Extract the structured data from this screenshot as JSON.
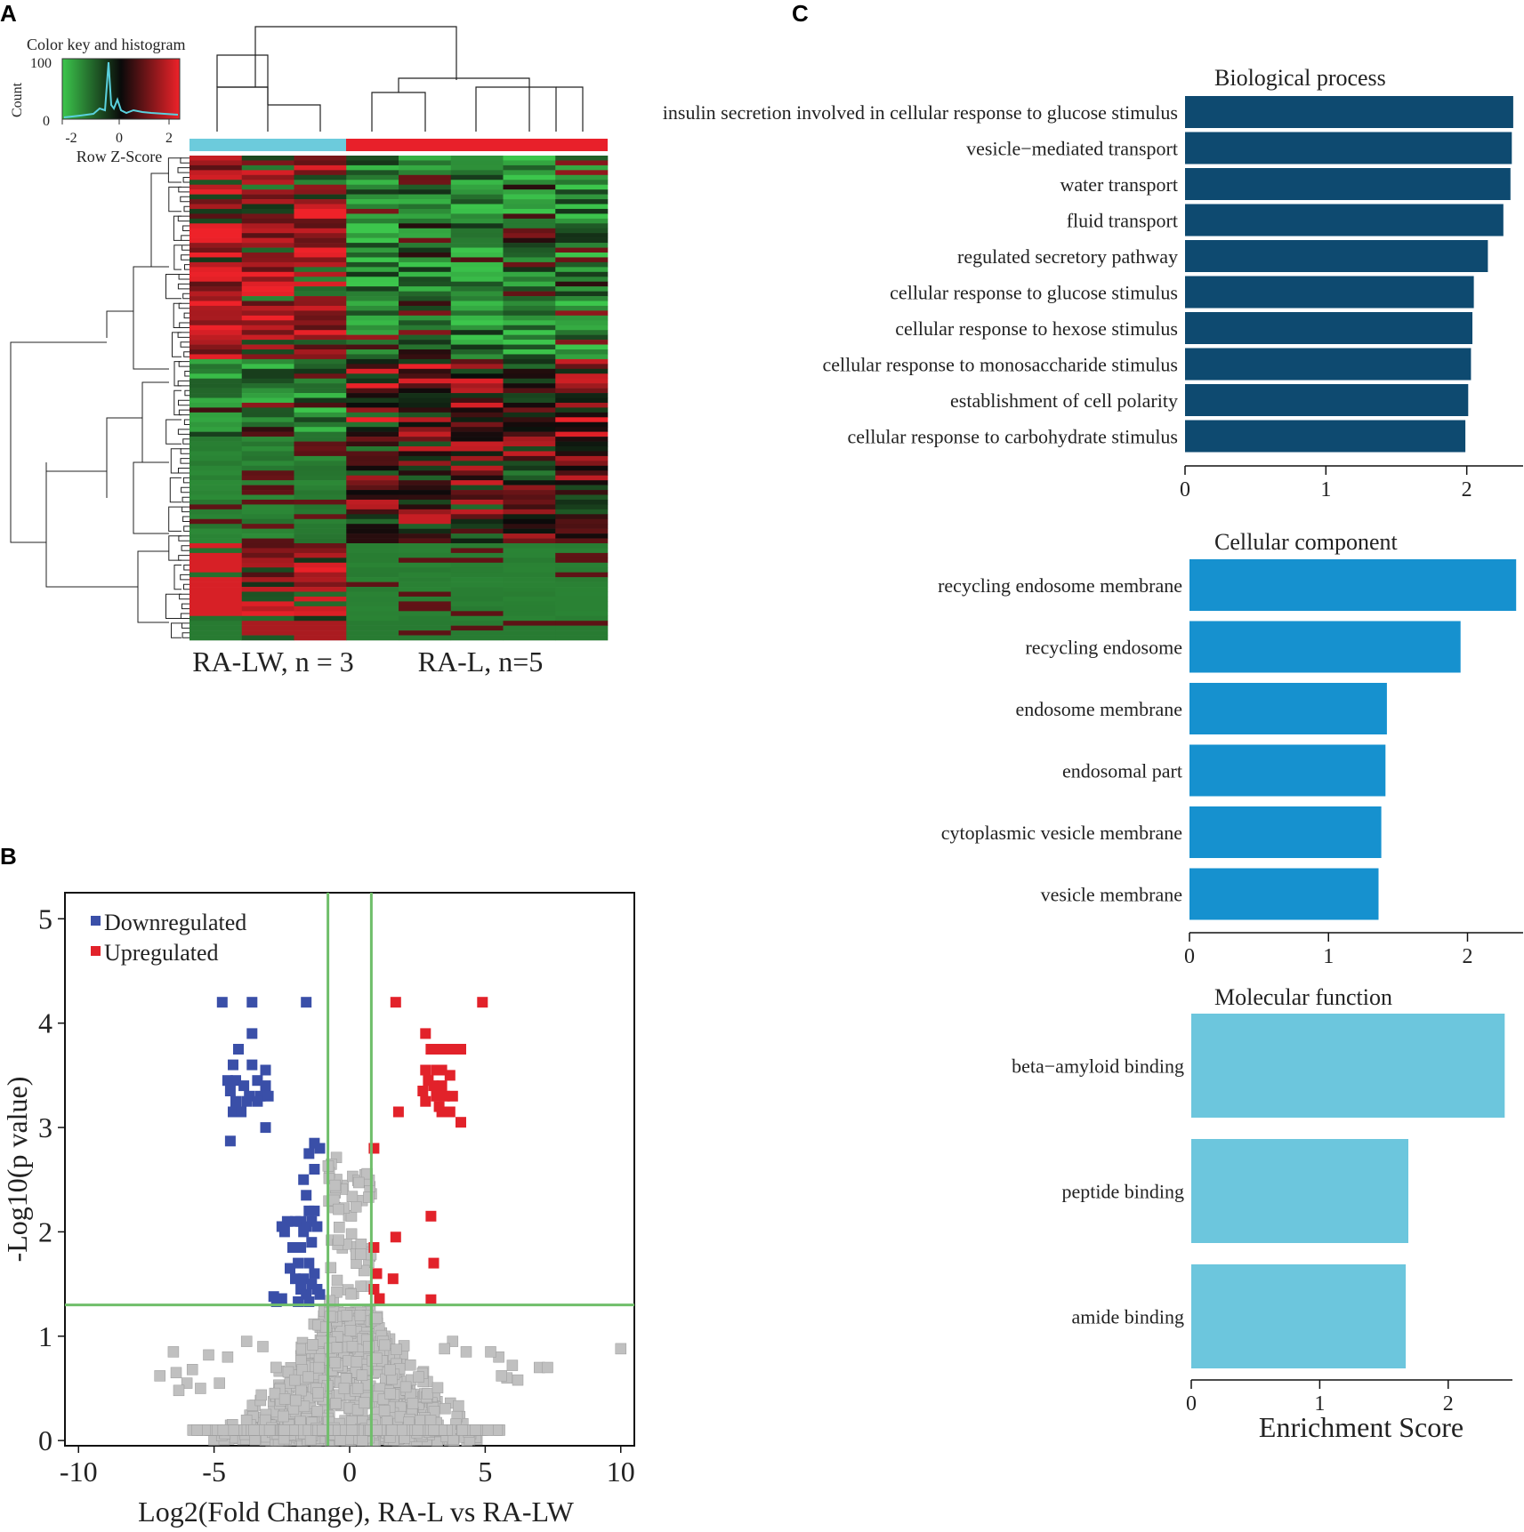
{
  "panels": {
    "a": "A",
    "b": "B",
    "c": "C"
  },
  "chart_data": [
    {
      "type": "heatmap",
      "panel": "A",
      "color_key": {
        "title": "Color key and histogram",
        "ylabel": "Count",
        "xlabel": "Row Z-Score",
        "yticks": [
          "100",
          "0"
        ],
        "xticks": [
          "-2",
          "0",
          "2"
        ],
        "colors": {
          "low": "#3cc64c",
          "mid": "#0a0a0a",
          "high": "#ee2229",
          "histogram": "#5ad0dd"
        }
      },
      "groups": [
        {
          "label": "RA-LW, n = 3",
          "columns": 3,
          "color": "#6ccbdc"
        },
        {
          "label": "RA-L, n=5",
          "columns": 5,
          "color": "#e8202a"
        }
      ],
      "n_rows": 100
    },
    {
      "type": "scatter",
      "panel": "B",
      "xlabel": "Log2(Fold Change), RA-L vs RA-LW",
      "ylabel": "-Log10(p value)",
      "xlim": [
        -10.5,
        10.5
      ],
      "ylim": [
        -0.05,
        5.25
      ],
      "xticks": [
        -10,
        -5,
        0,
        5,
        10
      ],
      "yticks": [
        0,
        1,
        2,
        3,
        4,
        5
      ],
      "xtick_labels": [
        "-10",
        "-5",
        "0",
        "5",
        "10"
      ],
      "ytick_labels": [
        "0",
        "1",
        "2",
        "3",
        "4",
        "5"
      ],
      "thresholds": {
        "x": [
          -0.8,
          0.8
        ],
        "y": 1.3
      },
      "legend": [
        {
          "label": "Downregulated",
          "color": "#3a4fa8"
        },
        {
          "label": "Upregulated",
          "color": "#e2222a"
        }
      ],
      "nonsignificant_color": "#c0c0c0",
      "series": [
        {
          "name": "Downregulated",
          "points": [
            [
              -4.7,
              4.2
            ],
            [
              -3.6,
              4.2
            ],
            [
              -1.6,
              4.2
            ],
            [
              -3.6,
              3.9
            ],
            [
              -4.1,
              3.75
            ],
            [
              -4.3,
              3.6
            ],
            [
              -3.6,
              3.6
            ],
            [
              -3.1,
              3.55
            ],
            [
              -4.5,
              3.45
            ],
            [
              -4.2,
              3.45
            ],
            [
              -3.9,
              3.4
            ],
            [
              -3.4,
              3.45
            ],
            [
              -3.1,
              3.4
            ],
            [
              -4.4,
              3.35
            ],
            [
              -3.7,
              3.3
            ],
            [
              -3.3,
              3.3
            ],
            [
              -3.0,
              3.3
            ],
            [
              -4.2,
              3.25
            ],
            [
              -3.8,
              3.25
            ],
            [
              -3.4,
              3.25
            ],
            [
              -4.3,
              3.15
            ],
            [
              -4.0,
              3.15
            ],
            [
              -3.1,
              3.0
            ],
            [
              -4.4,
              2.87
            ],
            [
              -1.3,
              2.85
            ],
            [
              -1.1,
              2.8
            ],
            [
              -1.5,
              2.75
            ],
            [
              -1.3,
              2.6
            ],
            [
              -1.7,
              2.5
            ],
            [
              -1.6,
              2.35
            ],
            [
              -1.5,
              2.2
            ],
            [
              -1.3,
              2.2
            ],
            [
              -1.4,
              2.1
            ],
            [
              -1.8,
              2.1
            ],
            [
              -2.0,
              2.1
            ],
            [
              -2.3,
              2.1
            ],
            [
              -2.5,
              2.05
            ],
            [
              -1.6,
              2.05
            ],
            [
              -1.2,
              2.05
            ],
            [
              -1.7,
              2.0
            ],
            [
              -2.4,
              2.0
            ],
            [
              -1.4,
              1.9
            ],
            [
              -1.8,
              1.85
            ],
            [
              -2.1,
              1.85
            ],
            [
              -1.5,
              1.7
            ],
            [
              -1.9,
              1.7
            ],
            [
              -2.2,
              1.65
            ],
            [
              -1.3,
              1.6
            ],
            [
              -1.7,
              1.55
            ],
            [
              -2.0,
              1.55
            ],
            [
              -1.4,
              1.5
            ],
            [
              -1.8,
              1.45
            ],
            [
              -1.2,
              1.45
            ],
            [
              -1.6,
              1.4
            ],
            [
              -1.1,
              1.4
            ],
            [
              -2.8,
              1.38
            ],
            [
              -2.5,
              1.36
            ],
            [
              -2.7,
              1.33
            ],
            [
              -1.9,
              1.33
            ],
            [
              -1.5,
              1.33
            ]
          ]
        },
        {
          "name": "Upregulated",
          "points": [
            [
              1.7,
              4.2
            ],
            [
              4.9,
              4.2
            ],
            [
              2.8,
              3.9
            ],
            [
              3.0,
              3.75
            ],
            [
              3.3,
              3.75
            ],
            [
              3.5,
              3.75
            ],
            [
              3.8,
              3.75
            ],
            [
              4.1,
              3.75
            ],
            [
              2.8,
              3.55
            ],
            [
              3.2,
              3.55
            ],
            [
              3.4,
              3.55
            ],
            [
              3.7,
              3.5
            ],
            [
              2.9,
              3.45
            ],
            [
              3.1,
              3.4
            ],
            [
              3.4,
              3.4
            ],
            [
              2.7,
              3.35
            ],
            [
              3.2,
              3.3
            ],
            [
              3.5,
              3.3
            ],
            [
              3.8,
              3.3
            ],
            [
              2.8,
              3.25
            ],
            [
              3.3,
              3.2
            ],
            [
              1.8,
              3.15
            ],
            [
              3.4,
              3.15
            ],
            [
              3.7,
              3.15
            ],
            [
              4.1,
              3.05
            ],
            [
              0.9,
              2.8
            ],
            [
              3.0,
              2.15
            ],
            [
              1.7,
              1.95
            ],
            [
              0.9,
              1.85
            ],
            [
              3.1,
              1.7
            ],
            [
              1.0,
              1.6
            ],
            [
              0.9,
              1.45
            ],
            [
              1.6,
              1.55
            ],
            [
              3.0,
              1.35
            ],
            [
              1.1,
              1.36
            ]
          ]
        },
        {
          "name": "Not significant",
          "points": [
            [
              10,
              0.88
            ],
            [
              -6.5,
              0.85
            ],
            [
              -6.4,
              0.65
            ],
            [
              -7.0,
              0.62
            ],
            [
              -5.8,
              0.68
            ],
            [
              -6.0,
              0.55
            ],
            [
              7.0,
              0.7
            ],
            [
              7.3,
              0.7
            ],
            [
              6.0,
              0.72
            ],
            [
              5.8,
              0.6
            ],
            [
              5.6,
              0.62
            ],
            [
              6.2,
              0.58
            ],
            [
              5.5,
              0.8
            ],
            [
              5.2,
              0.85
            ],
            [
              -5.2,
              0.82
            ],
            [
              -4.5,
              0.8
            ],
            [
              -4.8,
              0.55
            ],
            [
              -5.5,
              0.5
            ],
            [
              -6.3,
              0.48
            ],
            [
              4.3,
              0.85
            ],
            [
              3.8,
              0.95
            ],
            [
              3.5,
              0.88
            ],
            [
              -3.8,
              0.95
            ],
            [
              -3.2,
              0.9
            ],
            [
              -0.2,
              0.5
            ],
            [
              0.3,
              0.5
            ],
            [
              0.1,
              0.9
            ]
          ]
        }
      ]
    },
    {
      "type": "bar",
      "orientation": "horizontal",
      "panel": "C",
      "title": "Biological process",
      "categories": [
        "insulin secretion involved in cellular response to glucose stimulus",
        "vesicle−mediated transport",
        "water transport",
        "fluid transport",
        "regulated secretory pathway",
        "cellular response to glucose stimulus",
        "cellular response to hexose stimulus",
        "cellular response to monosaccharide stimulus",
        "establishment of cell polarity",
        "cellular response to carbohydrate stimulus"
      ],
      "values": [
        2.33,
        2.32,
        2.31,
        2.26,
        2.15,
        2.05,
        2.04,
        2.03,
        2.01,
        1.99
      ],
      "xlim": [
        0,
        2.4
      ],
      "xticks": [
        0,
        1,
        2
      ],
      "xtick_labels": [
        "0",
        "1",
        "2"
      ],
      "color": "#0e4a70"
    },
    {
      "type": "bar",
      "orientation": "horizontal",
      "panel": "C",
      "title": "Cellular component",
      "categories": [
        "recycling endosome membrane",
        "recycling endosome",
        "endosome membrane",
        "endosomal part",
        "cytoplasmic vesicle membrane",
        "vesicle membrane"
      ],
      "values": [
        2.35,
        1.95,
        1.42,
        1.41,
        1.38,
        1.36
      ],
      "xlim": [
        0,
        2.4
      ],
      "xticks": [
        0,
        1,
        2
      ],
      "xtick_labels": [
        "0",
        "1",
        "2"
      ],
      "color": "#1691cf"
    },
    {
      "type": "bar",
      "orientation": "horizontal",
      "panel": "C",
      "title": "Molecular function",
      "categories": [
        "beta−amyloid binding",
        "peptide binding",
        "amide binding"
      ],
      "values": [
        2.44,
        1.69,
        1.67
      ],
      "xlim": [
        0,
        2.5
      ],
      "xticks": [
        0,
        1,
        2
      ],
      "xtick_labels": [
        "0",
        "1",
        "2"
      ],
      "xlabel": "Enrichment Score",
      "color": "#6cc6dd"
    }
  ]
}
